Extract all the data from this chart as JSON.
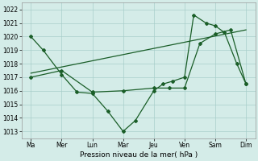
{
  "title": "",
  "xlabel": "Pression niveau de la mer( hPa )",
  "ylabel": "",
  "xlim": [
    -0.3,
    7.3
  ],
  "ylim": [
    1012.5,
    1022.5
  ],
  "yticks": [
    1013,
    1014,
    1015,
    1016,
    1017,
    1018,
    1019,
    1020,
    1021,
    1022
  ],
  "xtick_labels": [
    "Ma",
    "Mer",
    "Lun",
    "Mar",
    "Jeu",
    "Ven",
    "Sam",
    "Dim"
  ],
  "xtick_positions": [
    0,
    1,
    2,
    3,
    4,
    5,
    6,
    7
  ],
  "background_color": "#d4ece8",
  "grid_color": "#a8ceca",
  "line_color": "#1a5e28",
  "line1": {
    "x": [
      0,
      0.4,
      1,
      1.5,
      2,
      2.5,
      3,
      3.4,
      4,
      4.3,
      4.6,
      5,
      5.3,
      5.7,
      6,
      6.3,
      6.7,
      7
    ],
    "y": [
      1020.0,
      1019.0,
      1017.2,
      1015.9,
      1015.8,
      1014.5,
      1013.0,
      1013.8,
      1016.0,
      1016.5,
      1016.7,
      1017.0,
      1021.6,
      1021.0,
      1020.8,
      1020.3,
      1018.0,
      1016.5
    ]
  },
  "line2": {
    "x": [
      0,
      1,
      2,
      3,
      4,
      4.5,
      5,
      5.5,
      6,
      6.5,
      7
    ],
    "y": [
      1017.0,
      1017.5,
      1015.9,
      1016.0,
      1016.2,
      1016.2,
      1016.2,
      1019.5,
      1020.2,
      1020.5,
      1016.5
    ]
  },
  "line3": {
    "x": [
      0,
      7
    ],
    "y": [
      1017.3,
      1020.5
    ]
  }
}
